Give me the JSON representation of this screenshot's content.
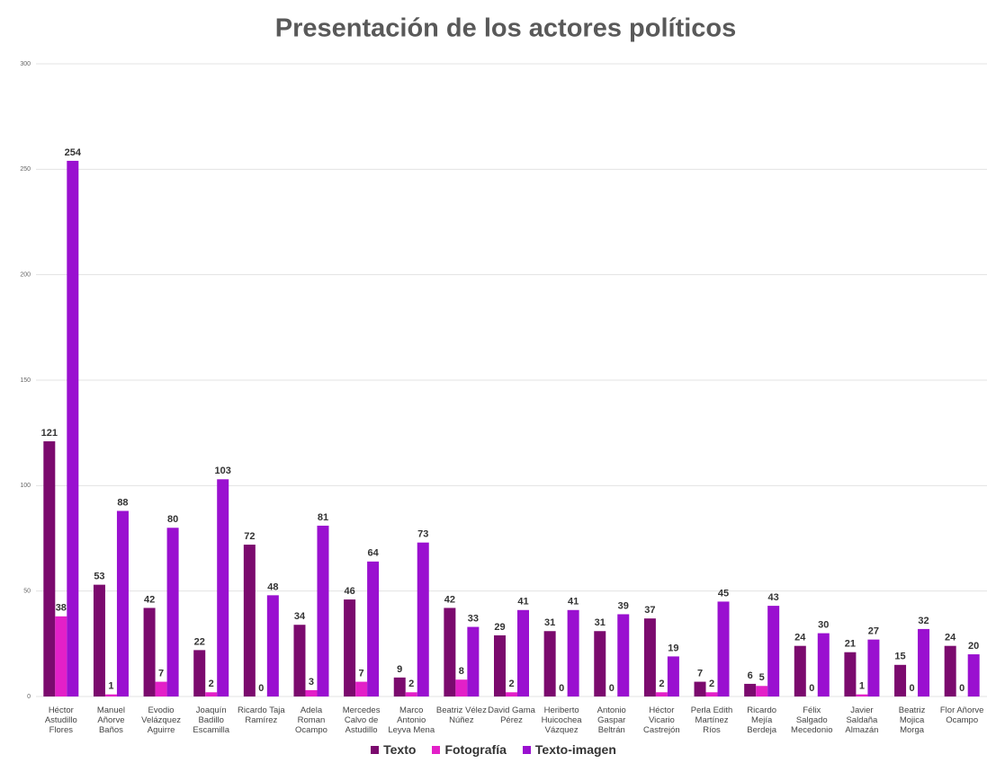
{
  "chart_data": {
    "type": "bar",
    "title": "Presentación de los actores políticos",
    "categories": [
      "Héctor Astudillo Flores",
      "Manuel Añorve Baños",
      "Evodio Velázquez Aguirre",
      "Joaquín Badillo Escamilla",
      "Ricardo Taja Ramírez",
      "Adela Roman Ocampo",
      "Mercedes Calvo de Astudillo",
      "Marco Antonio Leyva Mena",
      "Beatriz Vélez Núñez",
      "David Gama Pérez",
      "Heriberto Huicochea Vázquez",
      "Antonio Gaspar Beltrán",
      "Héctor Vicario Castrejón",
      "Perla Edith Martínez Ríos",
      "Ricardo Mejía Berdeja",
      "Félix Salgado Mecedonio",
      "Javier Saldaña Almazán",
      "Beatriz Mojica Morga",
      "Flor Añorve Ocampo"
    ],
    "series": [
      {
        "name": "Texto",
        "color": "#7b0a6e",
        "values": [
          121,
          53,
          42,
          22,
          72,
          34,
          46,
          9,
          42,
          29,
          31,
          31,
          37,
          7,
          6,
          24,
          21,
          15,
          24
        ]
      },
      {
        "name": "Fotografía",
        "color": "#e320c8",
        "values": [
          38,
          1,
          7,
          2,
          0,
          3,
          7,
          2,
          8,
          2,
          0,
          0,
          2,
          2,
          5,
          0,
          1,
          0,
          0
        ]
      },
      {
        "name": "Texto-imagen",
        "color": "#9a10d0",
        "values": [
          254,
          88,
          80,
          103,
          48,
          81,
          64,
          73,
          33,
          41,
          41,
          39,
          19,
          45,
          43,
          30,
          27,
          32,
          20
        ]
      }
    ],
    "ylim": [
      0,
      300
    ],
    "yticks": [
      0,
      50,
      100,
      150,
      200,
      250,
      300
    ],
    "grid": true,
    "legend": "bottom"
  }
}
